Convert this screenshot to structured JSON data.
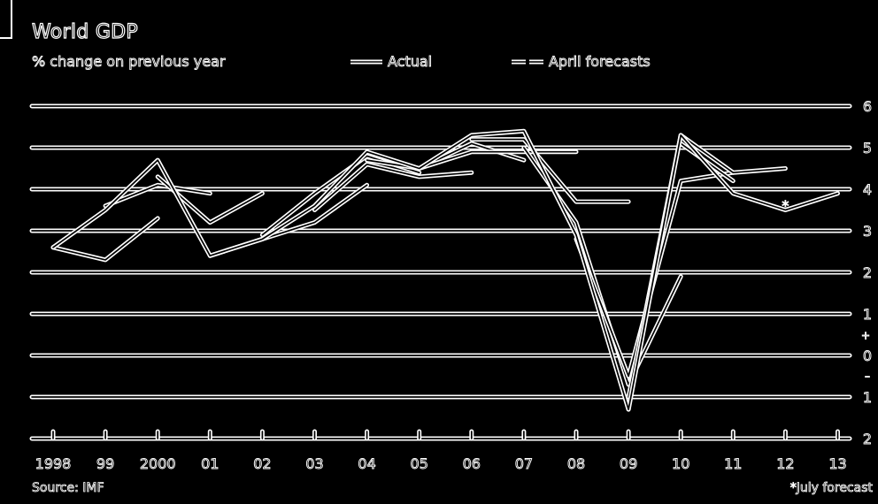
{
  "header": {
    "title": "World GDP",
    "subtitle": "% change on previous year"
  },
  "legend": [
    {
      "label": "Actual",
      "style": "double-solid"
    },
    {
      "label": "April forecasts",
      "style": "double-solid-gap"
    }
  ],
  "footer": {
    "source": "Source: IMF",
    "note": "*July forecast"
  },
  "colors": {
    "background": "#000000",
    "lines": "#ffffff"
  },
  "chart_data": {
    "type": "line",
    "title": "World GDP",
    "subtitle": "% change on previous year",
    "x_categories": [
      "1998",
      "99",
      "2000",
      "01",
      "02",
      "03",
      "04",
      "05",
      "06",
      "07",
      "08",
      "09",
      "10",
      "11",
      "12",
      "13"
    ],
    "y_ticks": [
      {
        "value": 6,
        "label": "6"
      },
      {
        "value": 5,
        "label": "5"
      },
      {
        "value": 4,
        "label": "4"
      },
      {
        "value": 3,
        "label": "3"
      },
      {
        "value": 2,
        "label": "2"
      },
      {
        "value": 1,
        "label": "1"
      },
      {
        "value": 0,
        "label": "0"
      },
      {
        "value": -1,
        "label": "1"
      },
      {
        "value": -2,
        "label": "2"
      }
    ],
    "y_sign_labels": {
      "plus": "+",
      "minus": "–"
    },
    "ylim": [
      -2,
      6
    ],
    "y_axis_side": "right",
    "grid": true,
    "series": [
      {
        "name": "Actual",
        "points": [
          [
            0,
            2.6
          ],
          [
            1,
            3.5
          ],
          [
            2,
            4.7
          ],
          [
            3,
            2.4
          ],
          [
            4,
            2.8
          ],
          [
            5,
            3.6
          ],
          [
            6,
            4.9
          ],
          [
            7,
            4.5
          ],
          [
            8,
            5.3
          ],
          [
            9,
            5.4
          ],
          [
            10,
            2.9
          ],
          [
            11,
            -1.3
          ],
          [
            12,
            5.3
          ],
          [
            13,
            3.9
          ],
          [
            14,
            3.5
          ],
          [
            15,
            3.9
          ]
        ]
      },
      {
        "name": "April forecasts",
        "segments": [
          [
            [
              0,
              2.6
            ],
            [
              1,
              2.3
            ],
            [
              2,
              3.3
            ]
          ],
          [
            [
              1,
              3.6
            ],
            [
              2,
              4.1
            ],
            [
              3,
              3.9
            ]
          ],
          [
            [
              2,
              4.3
            ],
            [
              3,
              3.2
            ],
            [
              4,
              3.9
            ]
          ],
          [
            [
              3,
              2.4
            ],
            [
              4,
              2.8
            ],
            [
              5,
              3.2
            ],
            [
              6,
              4.1
            ]
          ],
          [
            [
              4,
              2.9
            ],
            [
              5,
              3.9
            ],
            [
              6,
              4.8
            ],
            [
              7,
              4.4
            ]
          ],
          [
            [
              5,
              3.5
            ],
            [
              6,
              4.6
            ],
            [
              7,
              4.3
            ],
            [
              8,
              4.4
            ]
          ],
          [
            [
              6,
              4.7
            ],
            [
              7,
              4.5
            ],
            [
              8,
              5.1
            ],
            [
              9,
              4.7
            ]
          ],
          [
            [
              7,
              4.5
            ],
            [
              8,
              4.9
            ],
            [
              9,
              4.9
            ],
            [
              10,
              4.9
            ]
          ],
          [
            [
              8,
              5.2
            ],
            [
              9,
              5.2
            ],
            [
              10,
              3.7
            ],
            [
              11,
              3.7
            ]
          ],
          [
            [
              9,
              5.0
            ],
            [
              10,
              3.2
            ],
            [
              11,
              -0.7
            ],
            [
              12,
              1.9
            ]
          ],
          [
            [
              10,
              2.8
            ],
            [
              11,
              -0.5
            ],
            [
              12,
              4.2
            ],
            [
              13,
              4.4
            ]
          ],
          [
            [
              11,
              -1.0
            ],
            [
              12,
              5.3
            ],
            [
              13,
              4.4
            ],
            [
              14,
              4.5
            ]
          ],
          [
            [
              12,
              5.1
            ],
            [
              13,
              4.2
            ]
          ]
        ]
      }
    ],
    "annotations": [
      {
        "x": 14,
        "y": 3.7,
        "symbol": "*"
      }
    ]
  }
}
